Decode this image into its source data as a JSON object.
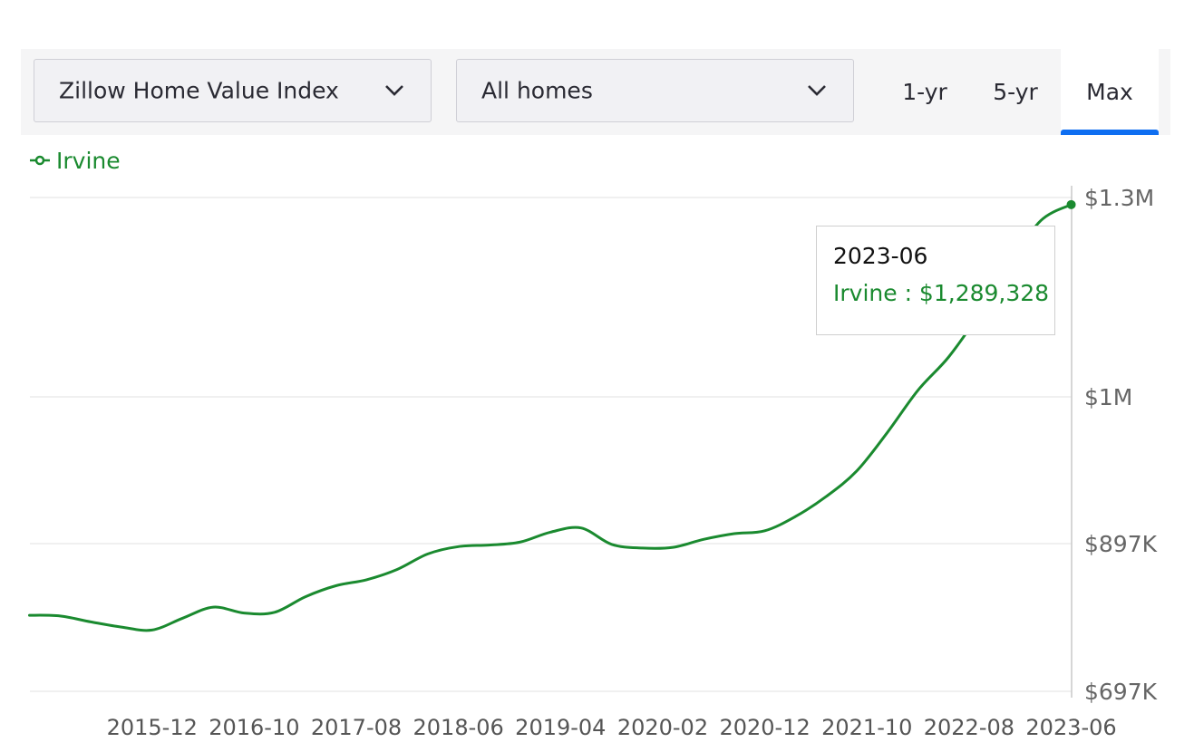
{
  "toolbar": {
    "metric_select": "Zillow Home Value Index",
    "home_type_select": "All homes",
    "tabs": [
      "1-yr",
      "5-yr",
      "Max"
    ],
    "active_tab": "Max"
  },
  "legend": {
    "label": "Irvine"
  },
  "tooltip": {
    "date": "2023-06",
    "value_text": "Irvine : $1,289,328"
  },
  "colors": {
    "line": "#1a8a2f",
    "accent": "#0e6ef1",
    "grid": "#e8e8e8"
  },
  "chart_data": {
    "type": "line",
    "title": "",
    "xlabel": "",
    "ylabel": "",
    "grid": true,
    "legend_position": "top-left",
    "y_ticks": [
      {
        "value": 697000,
        "label": "$697K"
      },
      {
        "value": 897000,
        "label": "$897K"
      },
      {
        "value": 1000000,
        "label": "$1M"
      },
      {
        "value": 1300000,
        "label": "$1.3M"
      }
    ],
    "x_ticks": [
      "2015-12",
      "2016-10",
      "2017-08",
      "2018-06",
      "2019-04",
      "2020-02",
      "2020-12",
      "2021-10",
      "2022-08",
      "2023-06"
    ],
    "ylim": [
      697000,
      1300000
    ],
    "series": [
      {
        "name": "Irvine",
        "points": [
          [
            "2014-12",
            800000
          ],
          [
            "2015-03",
            799000
          ],
          [
            "2015-06",
            791000
          ],
          [
            "2015-09",
            784000
          ],
          [
            "2015-12",
            780000
          ],
          [
            "2016-03",
            796000
          ],
          [
            "2016-06",
            811000
          ],
          [
            "2016-09",
            803000
          ],
          [
            "2016-12",
            804000
          ],
          [
            "2017-03",
            825000
          ],
          [
            "2017-06",
            840000
          ],
          [
            "2017-09",
            848000
          ],
          [
            "2017-12",
            862000
          ],
          [
            "2018-03",
            883000
          ],
          [
            "2018-06",
            893000
          ],
          [
            "2018-09",
            895000
          ],
          [
            "2018-12",
            898000
          ],
          [
            "2019-03",
            905000
          ],
          [
            "2019-06",
            908000
          ],
          [
            "2019-09",
            896000
          ],
          [
            "2019-12",
            891000
          ],
          [
            "2020-03",
            892000
          ],
          [
            "2020-06",
            900000
          ],
          [
            "2020-09",
            904000
          ],
          [
            "2020-12",
            906000
          ],
          [
            "2021-03",
            916000
          ],
          [
            "2021-06",
            930000
          ],
          [
            "2021-09",
            948000
          ],
          [
            "2021-12",
            975000
          ],
          [
            "2022-03",
            1010000
          ],
          [
            "2022-06",
            1060000
          ],
          [
            "2022-09",
            1125000
          ],
          [
            "2022-12",
            1200000
          ],
          [
            "2023-03",
            1265000
          ],
          [
            "2023-06",
            1289328
          ]
        ]
      }
    ]
  }
}
